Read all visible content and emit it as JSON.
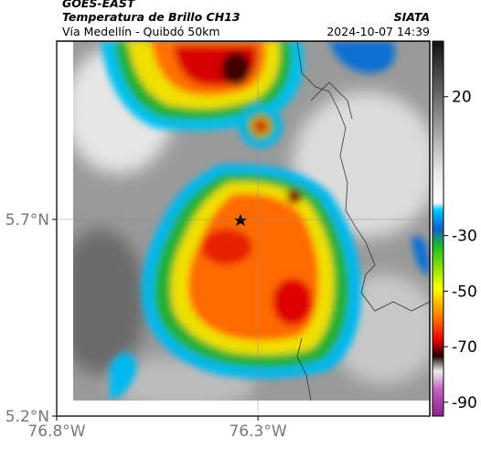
{
  "header": {
    "source": "GOES-EAST",
    "title": "Temperatura de Brillo CH13",
    "subtitle": "Vía Medellín - Quibdó 50km",
    "org": "SIATA",
    "datetime": "2024-10-07 14:39"
  },
  "map": {
    "xlim": [
      -76.8,
      -75.873
    ],
    "ylim": [
      5.2,
      6.153
    ],
    "xticks": [
      {
        "value": -76.8,
        "label": "76.8°W"
      },
      {
        "value": -76.3,
        "label": "76.3°W"
      }
    ],
    "yticks": [
      {
        "value": 5.2,
        "label": "5.2°N"
      },
      {
        "value": 5.7,
        "label": "5.7°N"
      }
    ],
    "grid": true
  },
  "colorbar": {
    "clim": [
      -95,
      40
    ],
    "ticks": [
      20,
      -30,
      -50,
      -70,
      -90
    ]
  }
}
